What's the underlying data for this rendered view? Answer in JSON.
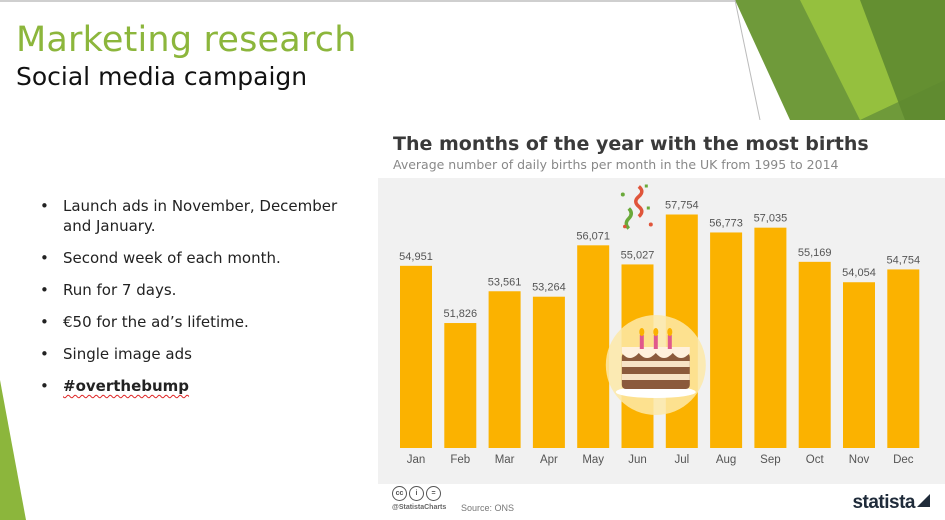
{
  "slide": {
    "title": "Marketing research",
    "subtitle": "Social media campaign",
    "bullets": [
      "Launch ads in November, December and January.",
      "Second week of each month.",
      "Run for 7 days.",
      "€50 for the ad’s lifetime.",
      "Single image ads"
    ],
    "hashtag": "#overthebump",
    "colors": {
      "title": "#8cb63c",
      "deco_dark": "#6f9a3a",
      "deco_light": "#9cc73f"
    }
  },
  "chart_data": {
    "type": "bar",
    "title": "The months of the year with the most births",
    "subtitle": "Average number of daily births per month in the UK from 1995 to 2014",
    "categories": [
      "Jan",
      "Feb",
      "Mar",
      "Apr",
      "May",
      "Jun",
      "Jul",
      "Aug",
      "Sep",
      "Oct",
      "Nov",
      "Dec"
    ],
    "values": [
      54951,
      51826,
      53561,
      53264,
      56071,
      55027,
      57754,
      56773,
      57035,
      55169,
      54054,
      54754
    ],
    "labels": [
      "54,951",
      "51,826",
      "53,561",
      "53,264",
      "56,071",
      "55,027",
      "57,754",
      "56,773",
      "57,035",
      "55,169",
      "54,054",
      "54,754"
    ],
    "ylim": [
      45000,
      58000
    ],
    "xlabel": "",
    "ylabel": "",
    "grid": false,
    "bar_color": "#fbb200",
    "background": "#f1f1f1",
    "decorations": [
      "birthday-cake-icon",
      "confetti-icon"
    ]
  },
  "footer": {
    "source": "Source: ONS",
    "handle": "@StatistaCharts",
    "brand": "statista",
    "license_icons": [
      "cc",
      "i",
      "="
    ]
  }
}
